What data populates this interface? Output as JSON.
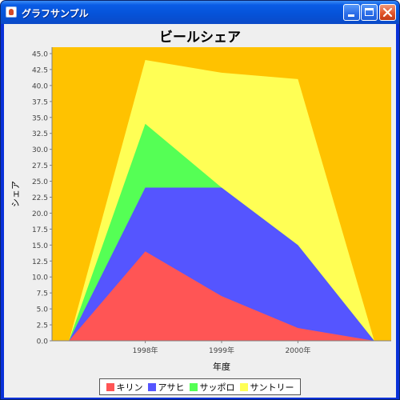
{
  "window": {
    "title": "グラフサンプル"
  },
  "chart_data": {
    "type": "area",
    "stacked": true,
    "title": "ビールシェア",
    "xlabel": "年度",
    "ylabel": "シェア",
    "categories": [
      "",
      "1998年",
      "1999年",
      "2000年",
      ""
    ],
    "category_labels_visible": [
      "1998年",
      "1999年",
      "2000年"
    ],
    "ylim": [
      0,
      46
    ],
    "yticks": [
      "0.0",
      "2.5",
      "5.0",
      "7.5",
      "10.0",
      "12.5",
      "15.0",
      "17.5",
      "20.0",
      "22.5",
      "25.0",
      "27.5",
      "30.0",
      "32.5",
      "35.0",
      "37.5",
      "40.0",
      "42.5",
      "45.0"
    ],
    "grid": false,
    "plot_background": "#ffc200",
    "legend_position": "bottom",
    "series": [
      {
        "name": "キリン",
        "color": "#ff5555",
        "values": [
          0,
          14,
          7,
          2,
          0
        ]
      },
      {
        "name": "アサヒ",
        "color": "#5555ff",
        "values": [
          0,
          10,
          17,
          13,
          0
        ]
      },
      {
        "name": "サッポロ",
        "color": "#55ff55",
        "values": [
          0,
          10,
          0,
          0,
          0
        ]
      },
      {
        "name": "サントリー",
        "color": "#ffff55",
        "values": [
          0,
          10,
          18,
          26,
          0
        ]
      }
    ],
    "stacked_totals": [
      0,
      44,
      42,
      41,
      0
    ]
  }
}
